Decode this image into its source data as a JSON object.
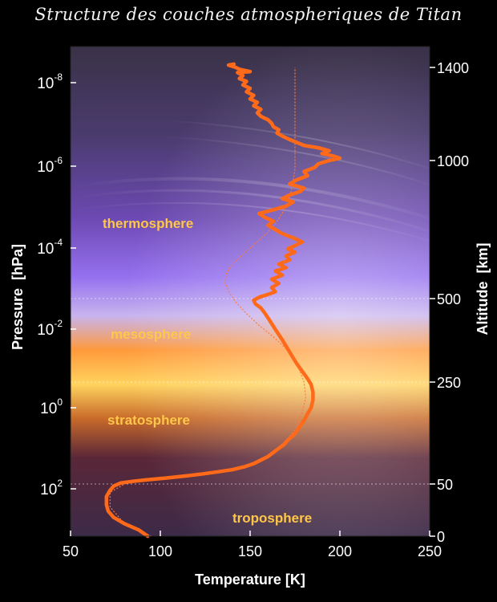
{
  "title": "Structure des couches atmospheriques de Titan",
  "chart_data": {
    "type": "line",
    "title": "Structure des couches atmospheriques de Titan",
    "xlabel": "Temperature [K]",
    "ylabel_left": "Pressure  [hPa]",
    "ylabel_right": "Altitude  [km]",
    "xlim": [
      50,
      250
    ],
    "x_ticks": [
      "50",
      "100",
      "150",
      "200",
      "250"
    ],
    "pressure_ticks": [
      {
        "base": "10",
        "exp": "-8"
      },
      {
        "base": "10",
        "exp": "-6"
      },
      {
        "base": "10",
        "exp": "-4"
      },
      {
        "base": "10",
        "exp": "-2"
      },
      {
        "base": "10",
        "exp": "0"
      },
      {
        "base": "10",
        "exp": "2"
      }
    ],
    "altitude_ticks": [
      "1400",
      "1000",
      "500",
      "250",
      "50",
      "0"
    ],
    "layers": [
      "thermosphere",
      "mesosphere",
      "stratosphere",
      "troposphere"
    ],
    "series": [
      {
        "style": "measured",
        "color": "#ff6a1a",
        "points": [
          [
            93,
            0
          ],
          [
            88,
            6
          ],
          [
            80,
            12
          ],
          [
            74,
            18
          ],
          [
            71,
            24
          ],
          [
            70,
            30
          ],
          [
            70,
            38
          ],
          [
            72,
            44
          ],
          [
            74,
            48
          ],
          [
            78,
            52
          ],
          [
            84,
            55
          ],
          [
            92,
            58
          ],
          [
            104,
            62
          ],
          [
            115,
            66
          ],
          [
            124,
            70
          ],
          [
            132,
            74
          ],
          [
            140,
            78
          ],
          [
            147,
            84
          ],
          [
            152,
            90
          ],
          [
            156,
            97
          ],
          [
            160,
            104
          ],
          [
            163,
            112
          ],
          [
            166,
            120
          ],
          [
            169,
            128
          ],
          [
            171,
            136
          ],
          [
            174,
            145
          ],
          [
            176,
            154
          ],
          [
            178,
            164
          ],
          [
            180,
            175
          ],
          [
            182,
            188
          ],
          [
            184,
            200
          ],
          [
            185,
            215
          ],
          [
            185,
            230
          ],
          [
            184,
            245
          ],
          [
            182,
            260
          ],
          [
            180,
            275
          ],
          [
            178,
            290
          ],
          [
            176,
            305
          ],
          [
            174,
            322
          ],
          [
            172,
            340
          ],
          [
            170,
            358
          ],
          [
            168,
            376
          ],
          [
            166,
            392
          ],
          [
            164,
            408
          ],
          [
            162,
            425
          ],
          [
            160,
            442
          ],
          [
            158,
            458
          ],
          [
            156,
            472
          ],
          [
            153,
            484
          ],
          [
            152,
            495
          ],
          [
            155,
            505
          ],
          [
            160,
            515
          ],
          [
            164,
            525
          ],
          [
            162,
            540
          ],
          [
            166,
            555
          ],
          [
            162,
            570
          ],
          [
            168,
            585
          ],
          [
            164,
            600
          ],
          [
            170,
            612
          ],
          [
            166,
            625
          ],
          [
            172,
            640
          ],
          [
            170,
            655
          ],
          [
            175,
            668
          ],
          [
            171,
            680
          ],
          [
            176,
            695
          ],
          [
            179,
            705
          ],
          [
            174,
            720
          ],
          [
            168,
            735
          ],
          [
            164,
            750
          ],
          [
            160,
            765
          ],
          [
            163,
            780
          ],
          [
            158,
            795
          ],
          [
            155,
            808
          ],
          [
            162,
            820
          ],
          [
            170,
            835
          ],
          [
            174,
            850
          ],
          [
            168,
            862
          ],
          [
            172,
            875
          ],
          [
            178,
            888
          ],
          [
            180,
            900
          ],
          [
            172,
            915
          ],
          [
            176,
            930
          ],
          [
            182,
            945
          ],
          [
            180,
            960
          ],
          [
            186,
            975
          ],
          [
            188,
            988
          ],
          [
            194,
            1000
          ],
          [
            200,
            1010
          ],
          [
            196,
            1020
          ],
          [
            190,
            1030
          ],
          [
            194,
            1042
          ],
          [
            188,
            1055
          ],
          [
            180,
            1065
          ],
          [
            176,
            1078
          ],
          [
            172,
            1090
          ],
          [
            168,
            1105
          ],
          [
            165,
            1118
          ],
          [
            166,
            1132
          ],
          [
            163,
            1145
          ],
          [
            162,
            1160
          ],
          [
            160,
            1175
          ],
          [
            156,
            1190
          ],
          [
            154,
            1205
          ],
          [
            156,
            1220
          ],
          [
            152,
            1235
          ],
          [
            154,
            1250
          ],
          [
            150,
            1265
          ],
          [
            152,
            1280
          ],
          [
            148,
            1295
          ],
          [
            150,
            1310
          ],
          [
            146,
            1325
          ],
          [
            148,
            1340
          ],
          [
            144,
            1352
          ],
          [
            146,
            1365
          ],
          [
            143,
            1378
          ],
          [
            150,
            1382
          ],
          [
            144,
            1392
          ],
          [
            142,
            1400
          ],
          [
            138,
            1410
          ],
          [
            141,
            1414
          ]
        ]
      },
      {
        "style": "model",
        "color": "#ff7a3a",
        "points": [
          [
            95,
            0
          ],
          [
            80,
            12
          ],
          [
            72,
            28
          ],
          [
            72,
            42
          ],
          [
            82,
            54
          ],
          [
            104,
            62
          ],
          [
            130,
            73
          ],
          [
            150,
            88
          ],
          [
            162,
            110
          ],
          [
            170,
            135
          ],
          [
            176,
            160
          ],
          [
            179,
            190
          ],
          [
            181,
            220
          ],
          [
            180,
            250
          ],
          [
            178,
            280
          ],
          [
            175,
            315
          ],
          [
            170,
            350
          ],
          [
            163,
            385
          ],
          [
            155,
            420
          ],
          [
            148,
            455
          ],
          [
            142,
            490
          ],
          [
            138,
            525
          ],
          [
            136,
            560
          ],
          [
            137,
            595
          ],
          [
            141,
            630
          ],
          [
            147,
            665
          ],
          [
            153,
            700
          ],
          [
            159,
            735
          ],
          [
            164,
            770
          ],
          [
            168,
            810
          ],
          [
            171,
            850
          ],
          [
            173,
            890
          ],
          [
            174,
            930
          ],
          [
            175,
            970
          ],
          [
            175,
            1010
          ],
          [
            175,
            1100
          ],
          [
            175,
            1200
          ],
          [
            175,
            1300
          ],
          [
            175,
            1400
          ]
        ]
      }
    ],
    "reference_altitudes": [
      50,
      250,
      500
    ],
    "grid": false,
    "legend": "none"
  }
}
